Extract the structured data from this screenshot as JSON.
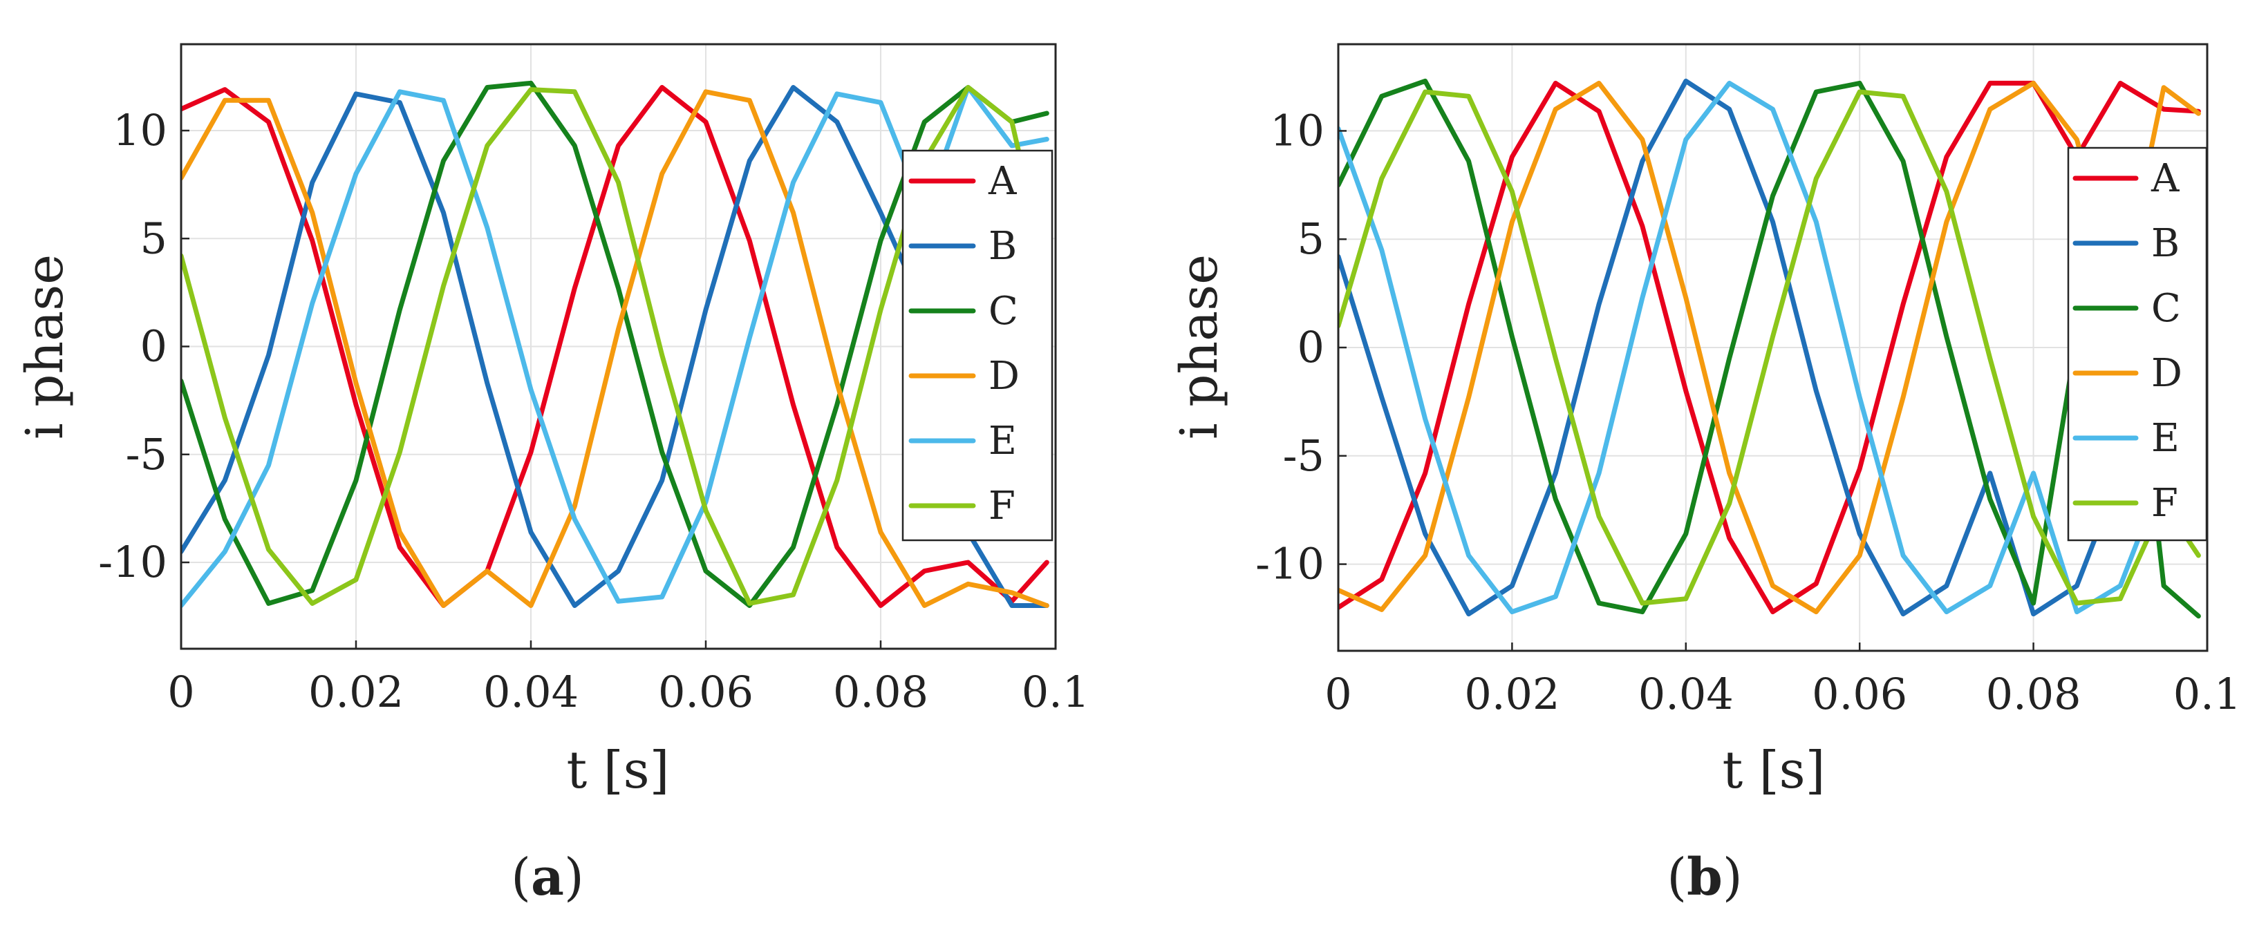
{
  "panel_labels": [
    {
      "open": "(",
      "letter": "a",
      "close": ")"
    },
    {
      "open": "(",
      "letter": "b",
      "close": ")"
    }
  ],
  "series_colors": {
    "A": "#e8001c",
    "B": "#1f6fb8",
    "C": "#15821c",
    "D": "#f59a0e",
    "E": "#4cb9ea",
    "F": "#8cc61a"
  },
  "chart_data": [
    {
      "type": "line",
      "xlabel": "t [s]",
      "ylabel": "i phase",
      "xlim": [
        0,
        0.1
      ],
      "ylim": [
        -14,
        14
      ],
      "xticks": [
        0,
        0.02,
        0.04,
        0.06,
        0.08,
        0.1
      ],
      "xtick_labels": [
        "0",
        "0.02",
        "0.04",
        "0.06",
        "0.08",
        "0.1"
      ],
      "yticks": [
        -10,
        -5,
        0,
        5,
        10
      ],
      "ytick_labels": [
        "-10",
        "-5",
        "0",
        "5",
        "10"
      ],
      "grid": true,
      "legend_position": "right",
      "x": [
        0,
        0.005,
        0.01,
        0.015,
        0.02,
        0.025,
        0.03,
        0.035,
        0.04,
        0.045,
        0.05,
        0.055,
        0.06,
        0.065,
        0.07,
        0.075,
        0.08,
        0.085,
        0.09,
        0.095,
        0.099
      ],
      "series": [
        {
          "name": "A",
          "values": [
            11.0,
            11.9,
            10.4,
            4.9,
            -2.7,
            -9.3,
            -12.0,
            -10.4,
            -4.9,
            2.7,
            9.3,
            12.0,
            10.4,
            4.9,
            -2.7,
            -9.3,
            -12.0,
            -10.4,
            -10.0,
            -11.8,
            -10.0
          ]
        },
        {
          "name": "B",
          "values": [
            -9.5,
            -6.2,
            -0.4,
            7.6,
            11.7,
            11.3,
            6.2,
            -1.7,
            -8.6,
            -12.0,
            -10.4,
            -6.2,
            1.7,
            8.6,
            12.0,
            10.4,
            6.2,
            1.7,
            -8.6,
            -12.0,
            -12.0
          ]
        },
        {
          "name": "C",
          "values": [
            -1.6,
            -8.0,
            -11.9,
            -11.3,
            -6.2,
            1.7,
            8.6,
            12.0,
            12.2,
            9.3,
            2.7,
            -4.9,
            -10.4,
            -12.0,
            -9.3,
            -2.7,
            4.9,
            10.4,
            12.0,
            10.4,
            10.8
          ]
        },
        {
          "name": "D",
          "values": [
            7.8,
            11.4,
            11.4,
            6.2,
            -1.7,
            -8.6,
            -12.0,
            -10.4,
            -12.0,
            -7.4,
            0.8,
            8.0,
            11.8,
            11.4,
            6.2,
            -1.7,
            -8.6,
            -12.0,
            -11.0,
            -11.4,
            -12.0
          ]
        },
        {
          "name": "E",
          "values": [
            -12.0,
            -9.5,
            -5.5,
            2.0,
            8.0,
            11.8,
            11.4,
            5.5,
            -2.0,
            -8.0,
            -11.8,
            -11.6,
            -7.2,
            0.4,
            7.6,
            11.7,
            11.3,
            6.2,
            12.0,
            9.3,
            9.6
          ]
        },
        {
          "name": "F",
          "values": [
            4.2,
            -3.3,
            -9.4,
            -11.9,
            -10.8,
            -4.9,
            2.8,
            9.3,
            11.9,
            11.8,
            7.6,
            -0.4,
            -7.6,
            -11.9,
            -11.5,
            -6.2,
            1.7,
            8.6,
            12.0,
            10.4,
            3.4
          ]
        }
      ]
    },
    {
      "type": "line",
      "xlabel": "t [s]",
      "ylabel": "i phase",
      "xlim": [
        0,
        0.1
      ],
      "ylim": [
        -14,
        14
      ],
      "xticks": [
        0,
        0.02,
        0.04,
        0.06,
        0.08,
        0.1
      ],
      "xtick_labels": [
        "0",
        "0.02",
        "0.04",
        "0.06",
        "0.08",
        "0.1"
      ],
      "yticks": [
        -10,
        -5,
        0,
        5,
        10
      ],
      "ytick_labels": [
        "-10",
        "-5",
        "0",
        "5",
        "10"
      ],
      "grid": true,
      "legend_position": "right",
      "x": [
        0,
        0.005,
        0.01,
        0.015,
        0.02,
        0.025,
        0.03,
        0.035,
        0.04,
        0.045,
        0.05,
        0.055,
        0.06,
        0.065,
        0.07,
        0.075,
        0.08,
        0.085,
        0.09,
        0.095,
        0.099
      ],
      "series": [
        {
          "name": "A",
          "values": [
            -12.0,
            -10.7,
            -5.8,
            2.0,
            8.8,
            12.2,
            10.9,
            5.6,
            -2.0,
            -8.8,
            -12.2,
            -10.9,
            -5.6,
            2.0,
            8.8,
            12.2,
            12.2,
            8.8,
            12.2,
            11.0,
            10.9
          ]
        },
        {
          "name": "B",
          "values": [
            4.2,
            -2.3,
            -8.6,
            -12.3,
            -11.0,
            -5.8,
            2.0,
            8.6,
            12.3,
            11.0,
            5.8,
            -2.0,
            -8.6,
            -12.3,
            -11.0,
            -5.8,
            -12.3,
            -11.0,
            -5.8,
            2.0,
            7.0
          ]
        },
        {
          "name": "C",
          "values": [
            7.5,
            11.6,
            12.3,
            8.6,
            0.5,
            -7.0,
            -11.8,
            -12.2,
            -8.6,
            -0.5,
            7.0,
            11.8,
            12.2,
            8.6,
            0.5,
            -7.0,
            -11.8,
            0.5,
            7.0,
            -11.0,
            -12.4
          ]
        },
        {
          "name": "D",
          "values": [
            -11.2,
            -12.1,
            -9.6,
            -2.3,
            5.8,
            11.0,
            12.2,
            9.6,
            2.3,
            -5.8,
            -11.0,
            -12.2,
            -9.6,
            -2.3,
            5.8,
            11.0,
            12.2,
            9.6,
            2.3,
            12.0,
            10.8
          ]
        },
        {
          "name": "E",
          "values": [
            10.1,
            4.5,
            -3.3,
            -9.6,
            -12.2,
            -11.5,
            -5.8,
            2.3,
            9.6,
            12.2,
            11.0,
            5.8,
            -2.3,
            -9.6,
            -12.2,
            -11.0,
            -5.8,
            -12.2,
            -11.0,
            -5.8,
            -4.5
          ]
        },
        {
          "name": "F",
          "values": [
            1.0,
            7.8,
            11.8,
            11.6,
            7.2,
            -0.5,
            -7.8,
            -11.8,
            -11.6,
            -7.2,
            0.5,
            7.8,
            11.8,
            11.6,
            7.2,
            -0.5,
            -7.8,
            -11.8,
            -11.6,
            -7.2,
            -9.6
          ]
        }
      ]
    }
  ]
}
